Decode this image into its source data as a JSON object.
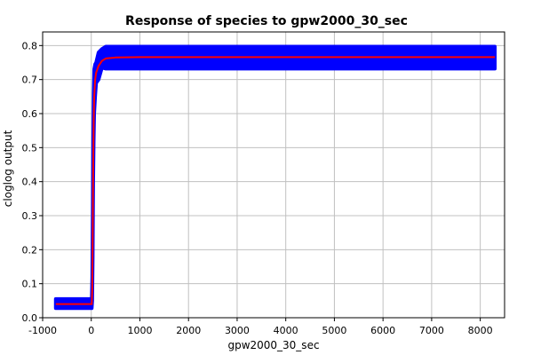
{
  "chart_data": {
    "type": "line",
    "title": "Response of species to gpw2000_30_sec",
    "xlabel": "gpw2000_30_sec",
    "ylabel": "cloglog output",
    "xlim": [
      -1000,
      8500
    ],
    "ylim": [
      0.0,
      0.84
    ],
    "x_ticks": [
      -1000,
      0,
      1000,
      2000,
      3000,
      4000,
      5000,
      6000,
      7000,
      8000
    ],
    "x_tick_labels": [
      "-1000",
      "0",
      "1000",
      "2000",
      "3000",
      "4000",
      "5000",
      "6000",
      "7000",
      "8000"
    ],
    "y_ticks": [
      0.0,
      0.1,
      0.2,
      0.3,
      0.4,
      0.5,
      0.6,
      0.7,
      0.8
    ],
    "y_tick_labels": [
      "0.0",
      "0.1",
      "0.2",
      "0.3",
      "0.4",
      "0.5",
      "0.6",
      "0.7",
      "0.8"
    ],
    "grid": true,
    "series": [
      {
        "role": "mean",
        "color": "#ff0000",
        "points": [
          [
            -730,
            0.04
          ],
          [
            10,
            0.04
          ],
          [
            20,
            0.08
          ],
          [
            30,
            0.25
          ],
          [
            40,
            0.45
          ],
          [
            50,
            0.58
          ],
          [
            60,
            0.65
          ],
          [
            80,
            0.7
          ],
          [
            100,
            0.72
          ],
          [
            150,
            0.74
          ],
          [
            220,
            0.755
          ],
          [
            300,
            0.762
          ],
          [
            500,
            0.765
          ],
          [
            1000,
            0.766
          ],
          [
            8300,
            0.766
          ]
        ]
      },
      {
        "role": "band",
        "color": "#0000ff",
        "upper": [
          [
            -730,
            0.055
          ],
          [
            10,
            0.055
          ],
          [
            20,
            0.12
          ],
          [
            30,
            0.3
          ],
          [
            40,
            0.52
          ],
          [
            50,
            0.66
          ],
          [
            60,
            0.73
          ],
          [
            80,
            0.745
          ],
          [
            100,
            0.75
          ],
          [
            150,
            0.78
          ],
          [
            220,
            0.79
          ],
          [
            300,
            0.797
          ],
          [
            500,
            0.797
          ],
          [
            1000,
            0.797
          ],
          [
            8300,
            0.797
          ]
        ],
        "lower": [
          [
            -730,
            0.028
          ],
          [
            10,
            0.028
          ],
          [
            20,
            0.05
          ],
          [
            30,
            0.18
          ],
          [
            40,
            0.4
          ],
          [
            50,
            0.52
          ],
          [
            60,
            0.6
          ],
          [
            80,
            0.65
          ],
          [
            100,
            0.69
          ],
          [
            150,
            0.7
          ],
          [
            220,
            0.735
          ],
          [
            300,
            0.732
          ],
          [
            500,
            0.732
          ],
          [
            1000,
            0.732
          ],
          [
            8300,
            0.732
          ]
        ]
      }
    ]
  }
}
